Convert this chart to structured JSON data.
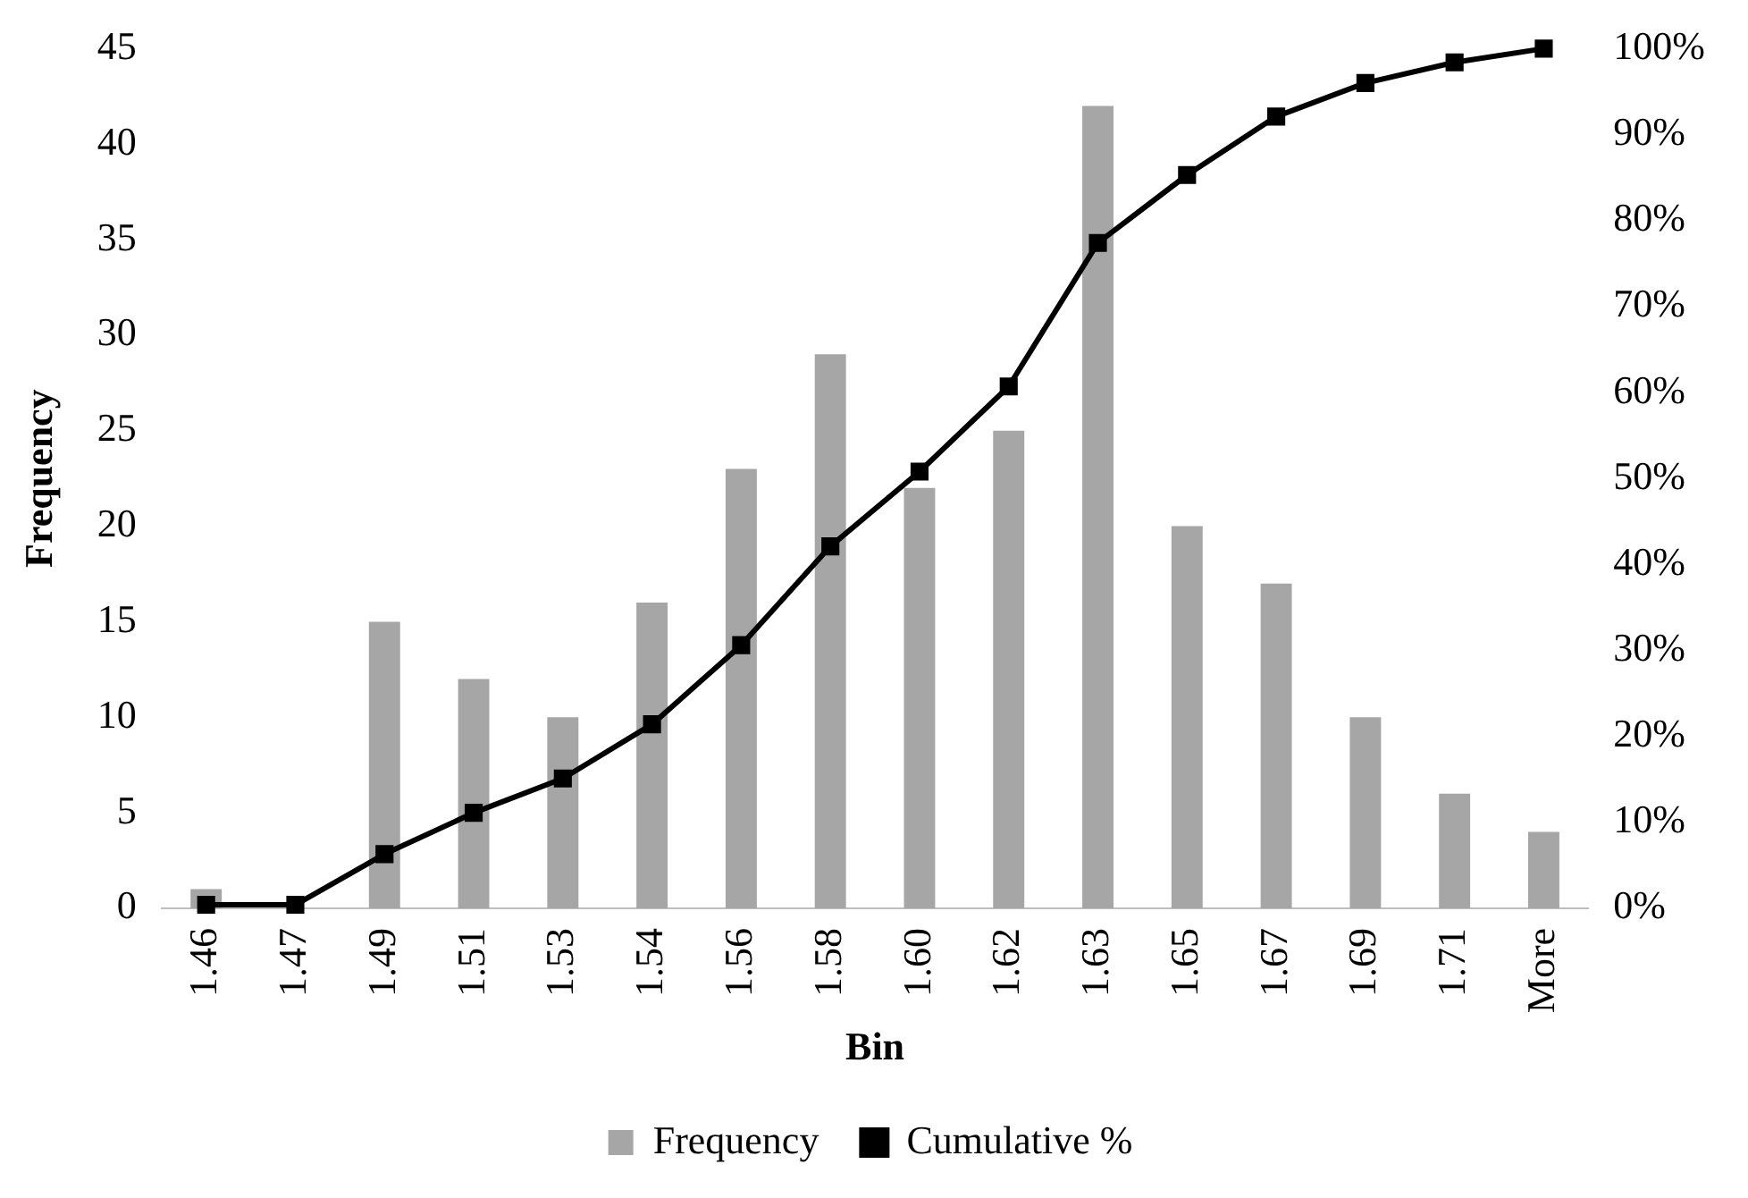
{
  "chart_data": {
    "type": "bar",
    "xlabel": "Bin",
    "ylabel": "Frequency",
    "categories": [
      "1.46",
      "1.47",
      "1.49",
      "1.51",
      "1.53",
      "1.54",
      "1.56",
      "1.58",
      "1.60",
      "1.62",
      "1.63",
      "1.65",
      "1.67",
      "1.69",
      "1.71",
      "More"
    ],
    "series": [
      {
        "name": "Frequency",
        "color": "#a6a6a6",
        "values": [
          1,
          null,
          15,
          12,
          10,
          16,
          23,
          29,
          22,
          25,
          42,
          20,
          17,
          10,
          6,
          4
        ]
      },
      {
        "name": "Cumulative %",
        "type": "line",
        "axis": "y2",
        "color": "#000000",
        "marker": "square",
        "line_style": "solid",
        "values": [
          0.4,
          0.4,
          6.3,
          11.1,
          15.1,
          21.4,
          30.6,
          42.1,
          50.8,
          60.7,
          77.4,
          85.3,
          92.1,
          96.0,
          98.4,
          100
        ]
      }
    ],
    "ylim": [
      0,
      45
    ],
    "yticks": [
      0,
      5,
      10,
      15,
      20,
      25,
      30,
      35,
      40,
      45
    ],
    "y2lim": [
      0,
      100
    ],
    "y2ticks": [
      {
        "value": 0,
        "label": "0%"
      },
      {
        "value": 10,
        "label": "10%"
      },
      {
        "value": 20,
        "label": "20%"
      },
      {
        "value": 30,
        "label": "30%"
      },
      {
        "value": 40,
        "label": "40%"
      },
      {
        "value": 50,
        "label": "50%"
      },
      {
        "value": 60,
        "label": "60%"
      },
      {
        "value": 70,
        "label": "70%"
      },
      {
        "value": 80,
        "label": "80%"
      },
      {
        "value": 90,
        "label": "90%"
      },
      {
        "value": 100,
        "label": "100%"
      }
    ],
    "grid": false,
    "legend": "bottom"
  }
}
